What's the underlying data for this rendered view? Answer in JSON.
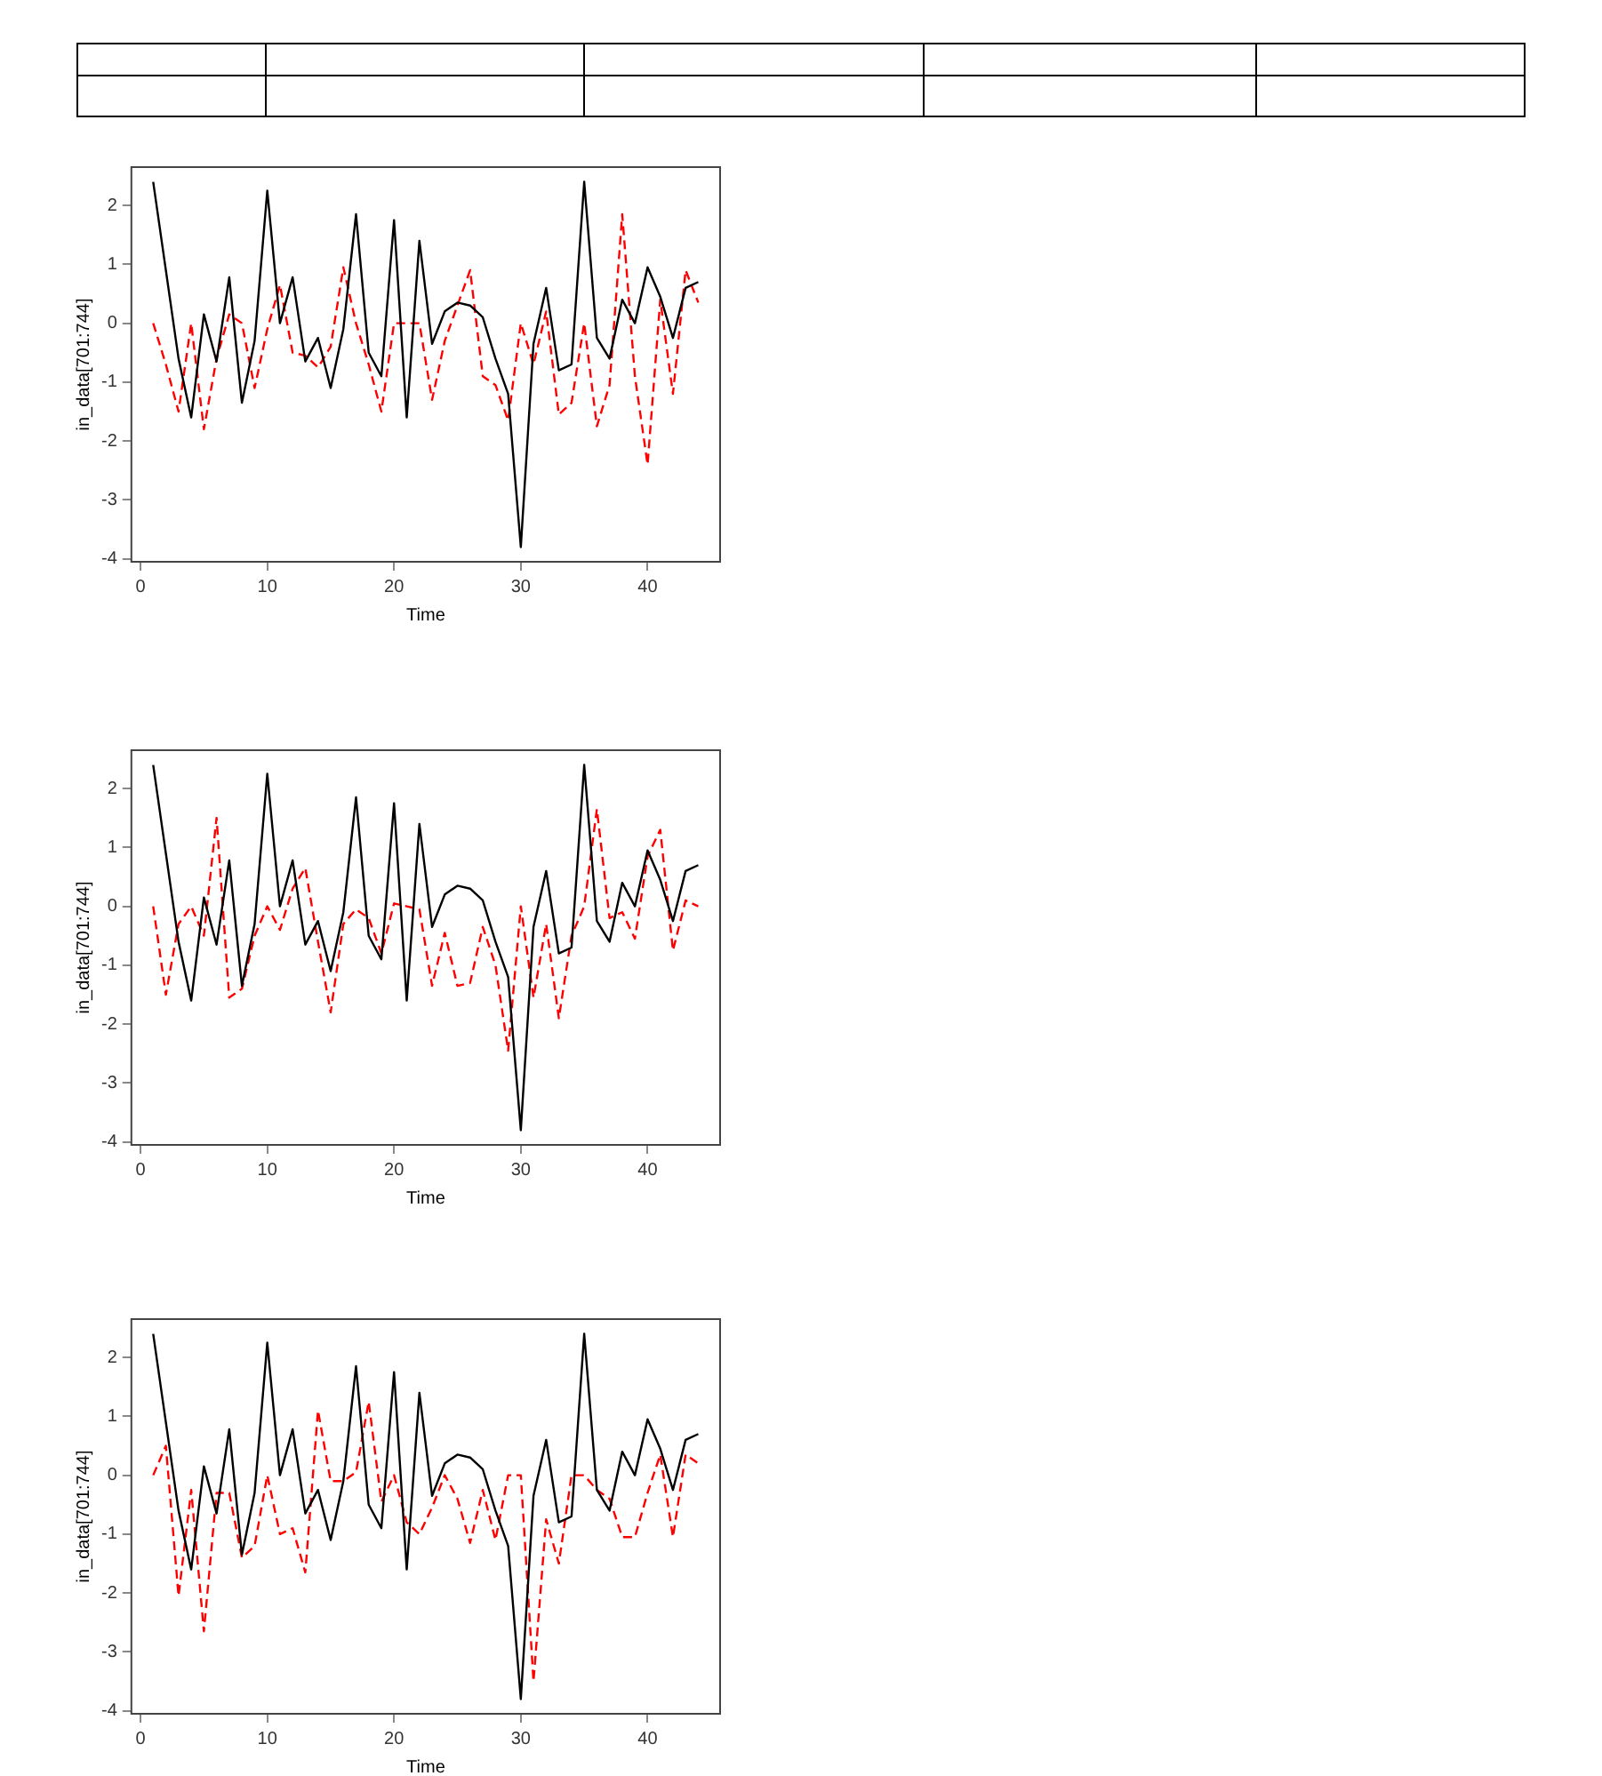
{
  "chart_data": [
    {
      "type": "line",
      "xlabel": "Time",
      "ylabel": "in_data[701:744]",
      "grid": false,
      "legend": false,
      "marker": "none",
      "xlim": [
        -0.72,
        45.72
      ],
      "ylim": [
        -4.05,
        2.65
      ],
      "xticks": [
        0,
        10,
        20,
        30,
        40
      ],
      "yticks": [
        -4,
        -3,
        -2,
        -1,
        0,
        1,
        2
      ],
      "x": [
        1,
        2,
        3,
        4,
        5,
        6,
        7,
        8,
        9,
        10,
        11,
        12,
        13,
        14,
        15,
        16,
        17,
        18,
        19,
        20,
        21,
        22,
        23,
        24,
        25,
        26,
        27,
        28,
        29,
        30,
        31,
        32,
        33,
        34,
        35,
        36,
        37,
        38,
        39,
        40,
        41,
        42,
        43,
        44
      ],
      "series": [
        {
          "color": "#000000",
          "line_style": "solid",
          "values": [
            2.4,
            0.9,
            -0.6,
            -1.6,
            0.15,
            -0.65,
            0.78,
            -1.35,
            -0.3,
            2.25,
            0.0,
            0.78,
            -0.65,
            -0.25,
            -1.1,
            -0.1,
            1.85,
            -0.5,
            -0.9,
            1.75,
            -1.6,
            1.4,
            -0.35,
            0.2,
            0.35,
            0.3,
            0.1,
            -0.6,
            -1.2,
            -3.8,
            -0.35,
            0.6,
            -0.8,
            -0.7,
            2.4,
            -0.25,
            -0.6,
            0.4,
            0.0,
            0.95,
            0.45,
            -0.25,
            0.6,
            0.7
          ]
        },
        {
          "color": "#ff0000",
          "line_style": "dashed",
          "values": [
            0,
            -0.7,
            -1.5,
            0.0,
            -1.8,
            -0.6,
            0.15,
            0.0,
            -1.1,
            -0.1,
            0.65,
            -0.5,
            -0.55,
            -0.75,
            -0.4,
            0.95,
            0.0,
            -0.7,
            -1.5,
            0.0,
            0.0,
            0.0,
            -1.3,
            -0.3,
            0.3,
            0.9,
            -0.9,
            -1.05,
            -1.65,
            0.0,
            -0.7,
            0.2,
            -1.55,
            -1.35,
            0.0,
            -1.75,
            -1.05,
            1.85,
            -0.9,
            -2.4,
            0.4,
            -1.2,
            0.9,
            0.35
          ]
        }
      ]
    },
    {
      "type": "line",
      "xlabel": "Time",
      "ylabel": "in_data[701:744]",
      "grid": false,
      "legend": false,
      "marker": "none",
      "xlim": [
        -0.72,
        45.72
      ],
      "ylim": [
        -4.05,
        2.65
      ],
      "xticks": [
        0,
        10,
        20,
        30,
        40
      ],
      "yticks": [
        -4,
        -3,
        -2,
        -1,
        0,
        1,
        2
      ],
      "x": [
        1,
        2,
        3,
        4,
        5,
        6,
        7,
        8,
        9,
        10,
        11,
        12,
        13,
        14,
        15,
        16,
        17,
        18,
        19,
        20,
        21,
        22,
        23,
        24,
        25,
        26,
        27,
        28,
        29,
        30,
        31,
        32,
        33,
        34,
        35,
        36,
        37,
        38,
        39,
        40,
        41,
        42,
        43,
        44
      ],
      "series": [
        {
          "color": "#000000",
          "line_style": "solid",
          "values": [
            2.4,
            0.9,
            -0.6,
            -1.6,
            0.15,
            -0.65,
            0.78,
            -1.35,
            -0.3,
            2.25,
            0.0,
            0.78,
            -0.65,
            -0.25,
            -1.1,
            -0.1,
            1.85,
            -0.5,
            -0.9,
            1.75,
            -1.6,
            1.4,
            -0.35,
            0.2,
            0.35,
            0.3,
            0.1,
            -0.6,
            -1.2,
            -3.8,
            -0.35,
            0.6,
            -0.8,
            -0.7,
            2.4,
            -0.25,
            -0.6,
            0.4,
            0.0,
            0.95,
            0.45,
            -0.25,
            0.6,
            0.7
          ]
        },
        {
          "color": "#ff0000",
          "line_style": "dashed",
          "values": [
            0,
            -1.5,
            -0.3,
            0.0,
            -0.5,
            1.5,
            -1.55,
            -1.4,
            -0.5,
            0.0,
            -0.4,
            0.3,
            0.65,
            -0.6,
            -1.8,
            -0.3,
            -0.05,
            -0.2,
            -0.8,
            0.05,
            0.0,
            -0.05,
            -1.35,
            -0.45,
            -1.35,
            -1.3,
            -0.35,
            -1.0,
            -2.45,
            0.0,
            -1.55,
            -0.3,
            -1.9,
            -0.5,
            0.0,
            1.65,
            -0.2,
            -0.1,
            -0.55,
            0.85,
            1.3,
            -0.75,
            0.1,
            0.0
          ]
        }
      ]
    },
    {
      "type": "line",
      "xlabel": "Time",
      "ylabel": "in_data[701:744]",
      "grid": false,
      "legend": false,
      "marker": "none",
      "xlim": [
        -0.72,
        45.72
      ],
      "ylim": [
        -4.05,
        2.65
      ],
      "xticks": [
        0,
        10,
        20,
        30,
        40
      ],
      "yticks": [
        -4,
        -3,
        -2,
        -1,
        0,
        1,
        2
      ],
      "x": [
        1,
        2,
        3,
        4,
        5,
        6,
        7,
        8,
        9,
        10,
        11,
        12,
        13,
        14,
        15,
        16,
        17,
        18,
        19,
        20,
        21,
        22,
        23,
        24,
        25,
        26,
        27,
        28,
        29,
        30,
        31,
        32,
        33,
        34,
        35,
        36,
        37,
        38,
        39,
        40,
        41,
        42,
        43,
        44
      ],
      "series": [
        {
          "color": "#000000",
          "line_style": "solid",
          "values": [
            2.4,
            0.9,
            -0.6,
            -1.6,
            0.15,
            -0.65,
            0.78,
            -1.35,
            -0.3,
            2.25,
            0.0,
            0.78,
            -0.65,
            -0.25,
            -1.1,
            -0.1,
            1.85,
            -0.5,
            -0.9,
            1.75,
            -1.6,
            1.4,
            -0.35,
            0.2,
            0.35,
            0.3,
            0.1,
            -0.6,
            -1.2,
            -3.8,
            -0.35,
            0.6,
            -0.8,
            -0.7,
            2.4,
            -0.25,
            -0.6,
            0.4,
            0.0,
            0.95,
            0.45,
            -0.25,
            0.6,
            0.7
          ]
        },
        {
          "color": "#ff0000",
          "line_style": "dashed",
          "values": [
            0,
            0.5,
            -2.05,
            -0.25,
            -2.65,
            -0.3,
            -0.3,
            -1.4,
            -1.2,
            0.0,
            -1.0,
            -0.9,
            -1.65,
            1.1,
            -0.1,
            -0.1,
            0.05,
            1.25,
            -0.45,
            0.0,
            -0.8,
            -1.0,
            -0.55,
            0.0,
            -0.4,
            -1.15,
            -0.25,
            -1.1,
            0.0,
            0.0,
            -3.5,
            -0.75,
            -1.5,
            0.0,
            0.0,
            -0.25,
            -0.4,
            -1.05,
            -1.05,
            -0.3,
            0.35,
            -1.05,
            0.35,
            0.2
          ]
        }
      ]
    }
  ]
}
